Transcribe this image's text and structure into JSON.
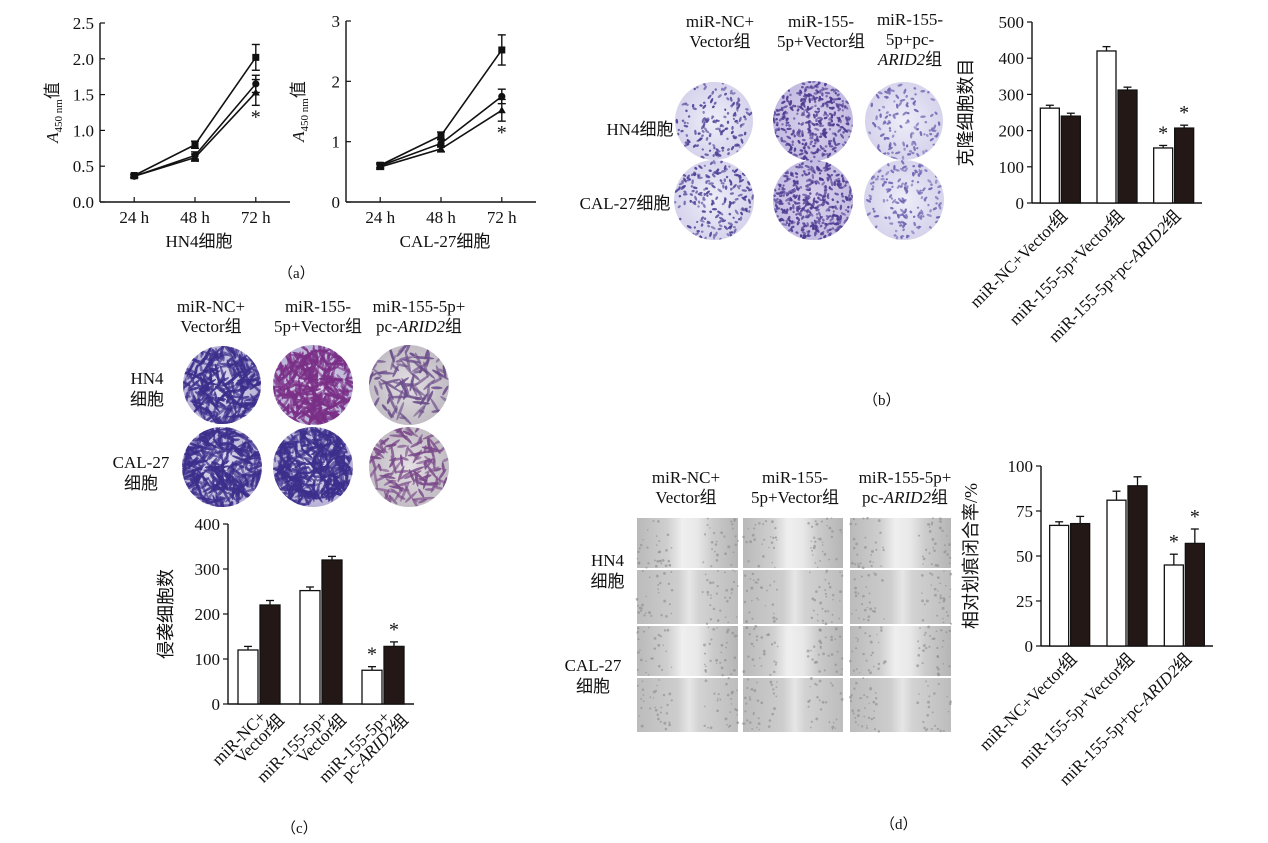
{
  "panels": {
    "a": "（a）",
    "b": "（b）",
    "c": "（c）",
    "d": "（d）"
  },
  "images_b": {
    "cols": [
      "miR-NC+\nVector组",
      "miR-155-\n5p+Vector组",
      "miR-155-\n5p+pc-\nARID2组"
    ],
    "rows": [
      "HN4细胞",
      "CAL-27细胞"
    ]
  },
  "images_c": {
    "cols": [
      "miR-NC+\nVector组",
      "miR-155-\n5p+Vector组",
      "miR-155-5p+\npc-ARID2组"
    ],
    "rows": [
      "HN4\n细胞",
      "CAL-27\n细胞"
    ]
  },
  "images_d": {
    "cols": [
      "miR-NC+\nVector组",
      "miR-155-\n5p+Vector组",
      "miR-155-5p+\npc-ARID2组"
    ],
    "rows": [
      "HN4\n细胞",
      "CAL-27\n细胞"
    ]
  },
  "colors": {
    "open_bar": "#ffffff",
    "filled_bar": "#231815",
    "stain_light": "#dcdaf0",
    "stain_dark": "#5a3f9c",
    "wound_bg": "#c9c9c9"
  },
  "chart_data": [
    {
      "id": "a-left",
      "type": "line",
      "x": [
        "24 h",
        "48 h",
        "72 h"
      ],
      "xlabel": "HN4细胞",
      "ylabel": "A450 nm值",
      "ylim": [
        0,
        2.5
      ],
      "yticks": [
        "0.0",
        "0.5",
        "1.0",
        "1.5",
        "2.0",
        "2.5"
      ],
      "series": [
        {
          "values": [
            0.37,
            0.8,
            2.02
          ],
          "err": [
            0.02,
            0.05,
            0.18
          ]
        },
        {
          "values": [
            0.36,
            0.65,
            1.65
          ],
          "err": [
            0.02,
            0.05,
            0.12
          ]
        },
        {
          "values": [
            0.36,
            0.62,
            1.53
          ],
          "err": [
            0.02,
            0.05,
            0.18
          ]
        }
      ],
      "annotations": [
        {
          "x": "72 h",
          "text": "*"
        }
      ]
    },
    {
      "id": "a-right",
      "type": "line",
      "x": [
        "24 h",
        "48 h",
        "72 h"
      ],
      "xlabel": "CAL-27细胞",
      "ylabel": "A450 nm值",
      "ylim": [
        0,
        3
      ],
      "yticks": [
        "0",
        "1",
        "2",
        "3"
      ],
      "series": [
        {
          "values": [
            0.61,
            1.1,
            2.52
          ],
          "err": [
            0.04,
            0.06,
            0.25
          ]
        },
        {
          "values": [
            0.6,
            0.97,
            1.75
          ],
          "err": [
            0.04,
            0.06,
            0.12
          ]
        },
        {
          "values": [
            0.58,
            0.88,
            1.52
          ],
          "err": [
            0.04,
            0.05,
            0.18
          ]
        }
      ],
      "annotations": [
        {
          "x": "72 h",
          "text": "*"
        }
      ]
    },
    {
      "id": "b",
      "type": "bar",
      "categories": [
        "miR-NC+Vector组",
        "miR-155-5p+Vector组",
        "miR-155-5p+pc-ARID2组"
      ],
      "ylabel": "克隆细胞数目",
      "ylim": [
        0,
        500
      ],
      "yticks": [
        "0",
        "100",
        "200",
        "300",
        "400",
        "500"
      ],
      "series": [
        {
          "values": [
            262,
            420,
            152
          ],
          "err": [
            8,
            12,
            7
          ],
          "stars": [
            false,
            false,
            true
          ]
        },
        {
          "values": [
            240,
            312,
            207
          ],
          "err": [
            8,
            8,
            8
          ],
          "stars": [
            false,
            false,
            true
          ]
        }
      ]
    },
    {
      "id": "c",
      "type": "bar",
      "categories": [
        "miR-NC+\nVector组",
        "miR-155-5p+\nVector组",
        "miR-155-5p+\npc-ARID2组"
      ],
      "ylabel": "侵袭细胞数",
      "ylim": [
        0,
        400
      ],
      "yticks": [
        "0",
        "100",
        "200",
        "300",
        "400"
      ],
      "series": [
        {
          "values": [
            120,
            252,
            75
          ],
          "err": [
            8,
            8,
            8
          ],
          "stars": [
            false,
            false,
            true
          ]
        },
        {
          "values": [
            220,
            320,
            128
          ],
          "err": [
            10,
            8,
            10
          ],
          "stars": [
            false,
            false,
            true
          ]
        }
      ]
    },
    {
      "id": "d",
      "type": "bar",
      "categories": [
        "miR-NC+Vector组",
        "miR-155-5p+Vector组",
        "miR-155-5p+pc-ARID2组"
      ],
      "ylabel": "相对划痕闭合率/%",
      "ylim": [
        0,
        100
      ],
      "yticks": [
        "0",
        "25",
        "50",
        "75",
        "100"
      ],
      "series": [
        {
          "values": [
            67,
            81,
            45
          ],
          "err": [
            2,
            5,
            6
          ],
          "stars": [
            false,
            false,
            true
          ]
        },
        {
          "values": [
            68,
            89,
            57
          ],
          "err": [
            4,
            5,
            8
          ],
          "stars": [
            false,
            false,
            true
          ]
        }
      ]
    }
  ]
}
